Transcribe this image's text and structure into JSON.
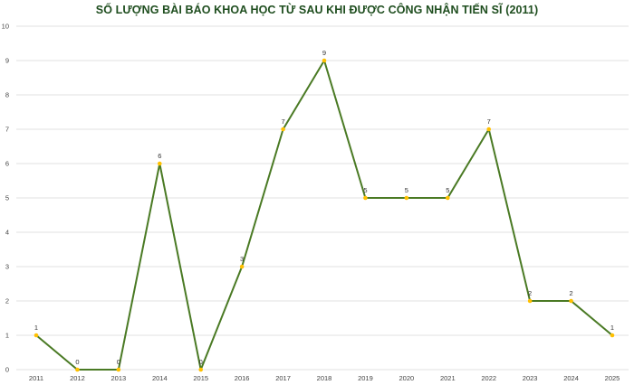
{
  "chart_data": {
    "type": "line",
    "title": "SỐ LƯỢNG BÀI BÁO KHOA HỌC TỪ SAU KHI ĐƯỢC CÔNG NHẬN TIẾN SĨ (2011)",
    "xlabel": "",
    "ylabel": "",
    "categories": [
      "2011",
      "2012",
      "2013",
      "2014",
      "2015",
      "2016",
      "2017",
      "2018",
      "2019",
      "2020",
      "2021",
      "2022",
      "2023",
      "2024",
      "2025"
    ],
    "series": [
      {
        "values": [
          1,
          0,
          0,
          6,
          0,
          3,
          7,
          9,
          5,
          5,
          5,
          7,
          2,
          2,
          1
        ]
      }
    ],
    "ylim": [
      0,
      10
    ],
    "yticks": [
      0,
      1,
      2,
      3,
      4,
      5,
      6,
      7,
      8,
      9,
      10
    ],
    "grid": true,
    "legend": "none",
    "data_labels": true,
    "colors": {
      "line": "#4a7a24",
      "marker": "#ffc000",
      "grid": "#d9d9d9",
      "title": "#1f4e1f"
    }
  }
}
